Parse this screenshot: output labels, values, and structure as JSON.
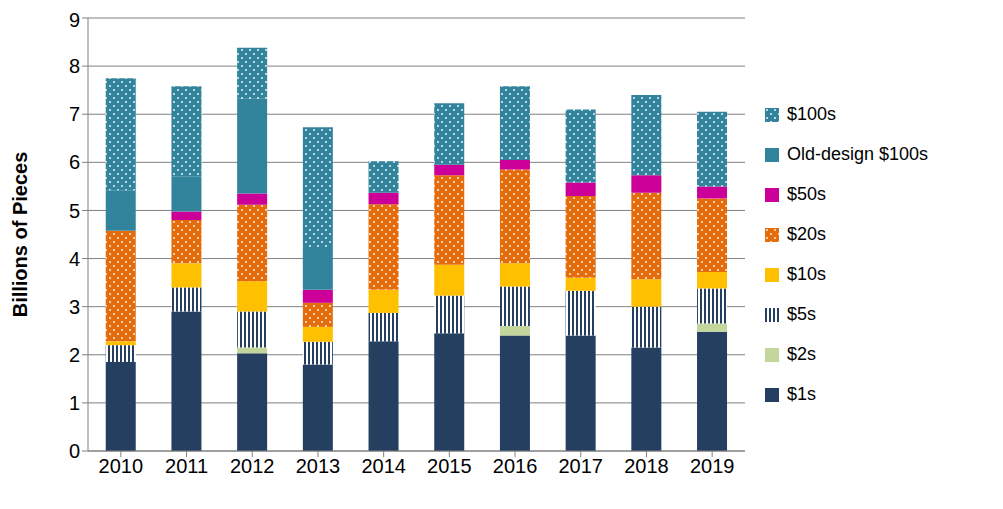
{
  "chart_data": {
    "type": "bar",
    "stacked": true,
    "y_label": "Billions of Pieces",
    "categories": [
      "2010",
      "2011",
      "2012",
      "2013",
      "2014",
      "2015",
      "2016",
      "2017",
      "2018",
      "2019"
    ],
    "ylim": [
      0,
      9
    ],
    "yticks": [
      0,
      1,
      2,
      3,
      4,
      5,
      6,
      7,
      8,
      9
    ],
    "grid": true,
    "legend": "right",
    "series": [
      {
        "name": "$1s",
        "color": "#243f60",
        "values": [
          1.85,
          2.9,
          2.03,
          1.8,
          2.28,
          2.45,
          2.4,
          2.4,
          2.15,
          2.48
        ]
      },
      {
        "name": "$2s",
        "color": "#c3d69b",
        "values": [
          0,
          0,
          0.12,
          0,
          0,
          0,
          0.2,
          0,
          0,
          0.17
        ]
      },
      {
        "name": "$5s",
        "color": "#243f60",
        "values": [
          0.35,
          0.5,
          0.75,
          0.47,
          0.59,
          0.78,
          0.82,
          0.93,
          0.85,
          0.73
        ]
      },
      {
        "name": "$10s",
        "color": "#ffc000",
        "values": [
          0.08,
          0.5,
          0.63,
          0.31,
          0.48,
          0.64,
          0.48,
          0.27,
          0.57,
          0.34
        ]
      },
      {
        "name": "$20s",
        "color": "#e46c0a",
        "values": [
          2.3,
          0.9,
          1.59,
          0.5,
          1.78,
          1.86,
          1.95,
          1.7,
          1.8,
          1.53
        ]
      },
      {
        "name": "$50s",
        "color": "#cc0099",
        "values": [
          0,
          0.18,
          0.23,
          0.27,
          0.24,
          0.22,
          0.2,
          0.28,
          0.36,
          0.25
        ]
      },
      {
        "name": "Old-design $100s",
        "color": "#31849b",
        "values": [
          0.84,
          0.72,
          1.97,
          0.87,
          0,
          0,
          0,
          0,
          0,
          0
        ]
      },
      {
        "name": "$100s",
        "color": "#31849b",
        "values": [
          2.33,
          1.88,
          1.06,
          2.51,
          0.65,
          1.28,
          1.53,
          1.52,
          1.67,
          1.55
        ]
      }
    ]
  }
}
